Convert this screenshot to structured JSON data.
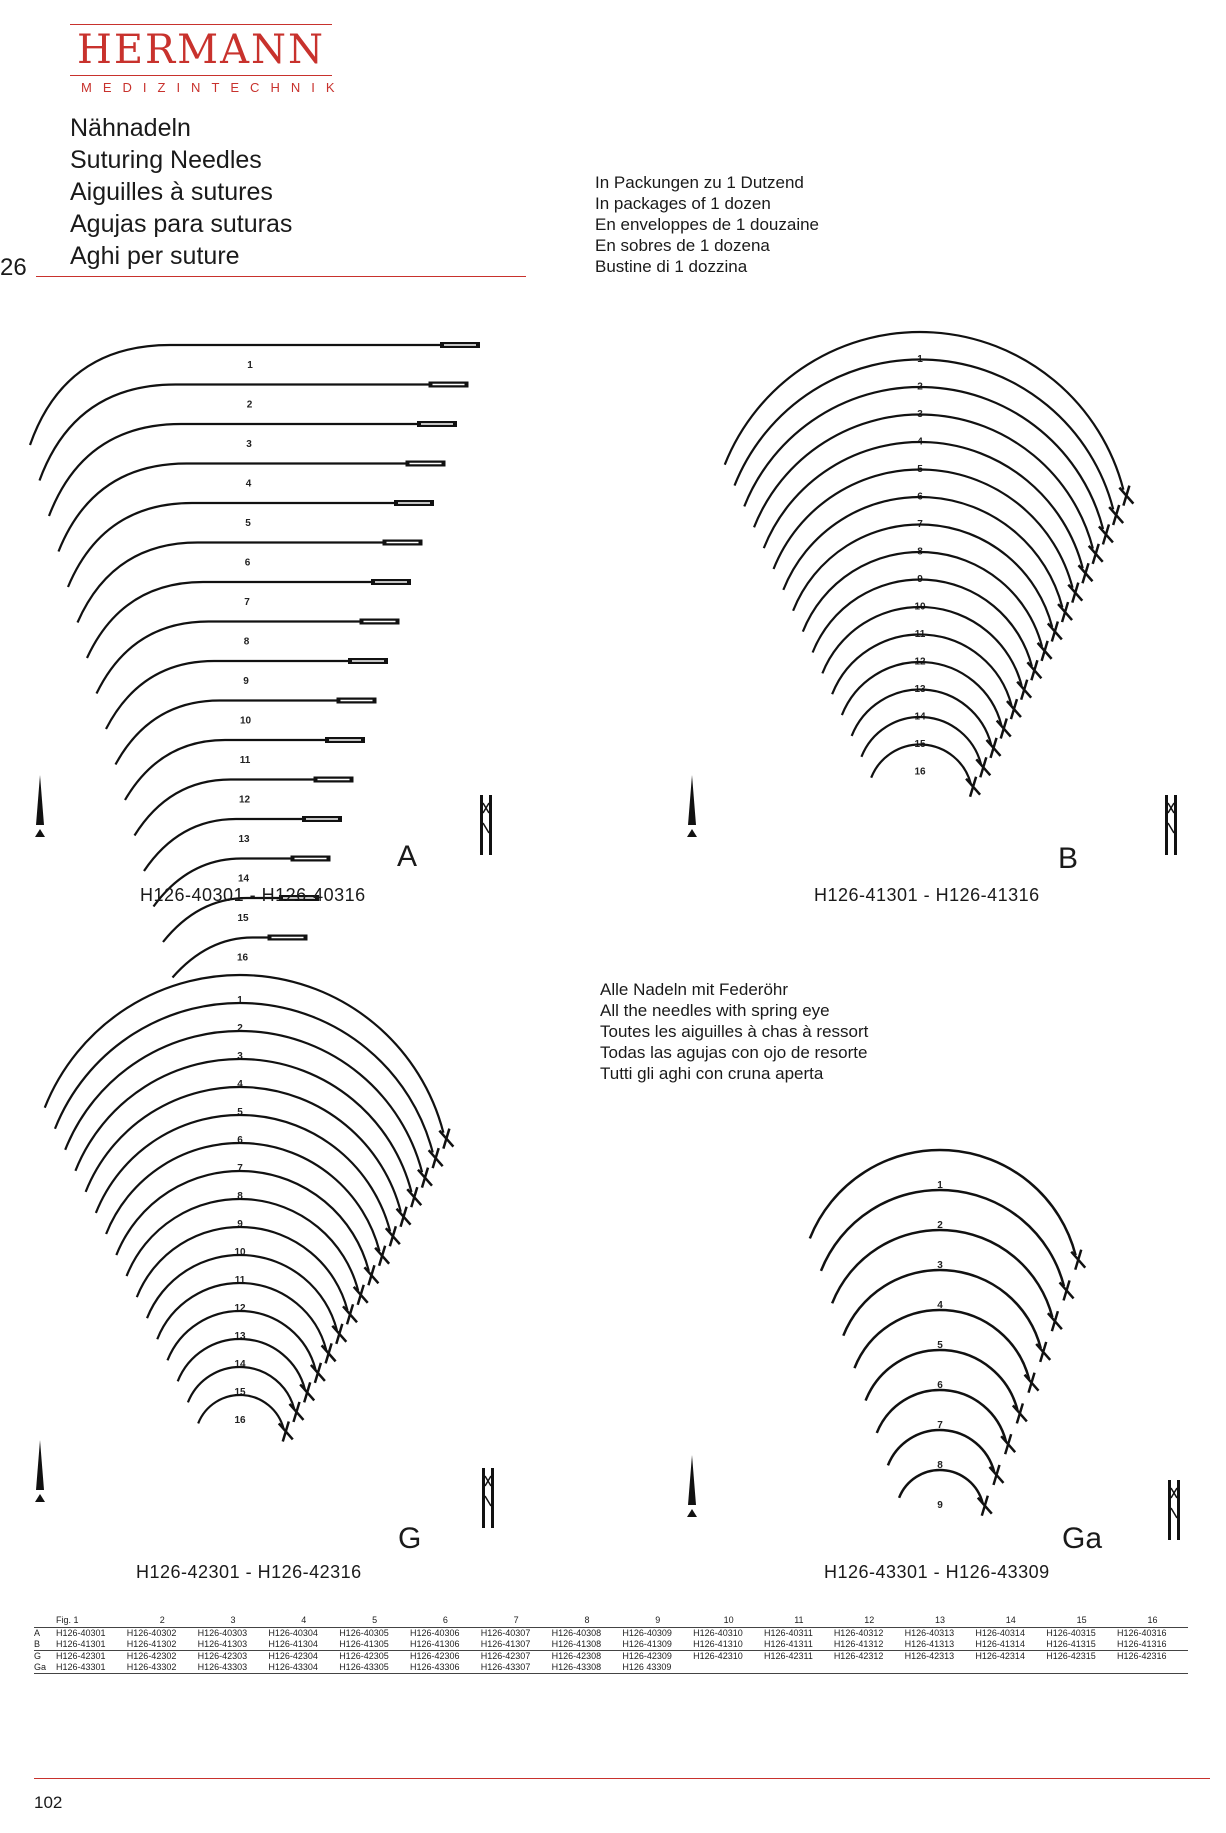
{
  "brand": {
    "name": "HERMANN",
    "subtitle": "MEDIZINTECHNIK"
  },
  "titles": [
    "Nähnadeln",
    "Suturing Needles",
    "Aiguilles à sutures",
    "Agujas para suturas",
    "Aghi per suture"
  ],
  "section_number": "26",
  "packaging": [
    "In Packungen zu 1 Dutzend",
    "In packages of 1 dozen",
    "En enveloppes de 1 douzaine",
    "En sobres de 1 dozena",
    "Bustine di 1 dozzina"
  ],
  "spring_eye": [
    "Alle Nadeln mit Federöhr",
    "All the needles with spring eye",
    "Toutes les aiguilles à chas à ressort",
    "Todas las agujas con ojo de resorte",
    "Tutti gli aghi con cruna aperta"
  ],
  "figures": [
    {
      "letter": "A",
      "range": "H126-40301 - H126-40316",
      "shape": "half-curved",
      "count": 16
    },
    {
      "letter": "B",
      "range": "H126-41301 - H126-41316",
      "shape": "curved",
      "count": 16
    },
    {
      "letter": "G",
      "range": "H126-42301 - H126-42316",
      "shape": "curved",
      "count": 16
    },
    {
      "letter": "Ga",
      "range": "H126-43301 - H126-43309",
      "shape": "curved",
      "count": 9
    }
  ],
  "table": {
    "header": [
      "Fig. 1",
      "2",
      "3",
      "4",
      "5",
      "6",
      "7",
      "8",
      "9",
      "10",
      "11",
      "12",
      "13",
      "14",
      "15",
      "16"
    ],
    "rows": [
      {
        "label": "A",
        "codes": [
          "H126-40301",
          "H126-40302",
          "H126-40303",
          "H126-40304",
          "H126-40305",
          "H126-40306",
          "H126-40307",
          "H126-40308",
          "H126-40309",
          "H126-40310",
          "H126-40311",
          "H126-40312",
          "H126-40313",
          "H126-40314",
          "H126-40315",
          "H126-40316"
        ]
      },
      {
        "label": "B",
        "codes": [
          "H126-41301",
          "H126-41302",
          "H126-41303",
          "H126-41304",
          "H126-41305",
          "H126-41306",
          "H126-41307",
          "H126-41308",
          "H126-41309",
          "H126-41310",
          "H126-41311",
          "H126-41312",
          "H126-41313",
          "H126-41314",
          "H126-41315",
          "H126-41316"
        ]
      },
      {
        "label": "G",
        "codes": [
          "H126-42301",
          "H126-42302",
          "H126-42303",
          "H126-42304",
          "H126-42305",
          "H126-42306",
          "H126-42307",
          "H126-42308",
          "H126-42309",
          "H126-42310",
          "H126-42311",
          "H126-42312",
          "H126-42313",
          "H126-42314",
          "H126-42315",
          "H126-42316"
        ]
      },
      {
        "label": "Ga",
        "codes": [
          "H126-43301",
          "H126-43302",
          "H126-43303",
          "H126-43304",
          "H126-43305",
          "H126-43306",
          "H126-43307",
          "H126-43308",
          "H126 43309"
        ]
      }
    ]
  },
  "page_number": "102"
}
